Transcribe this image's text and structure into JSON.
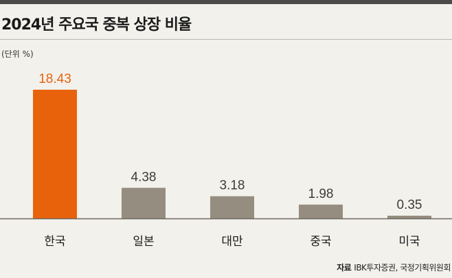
{
  "header": {
    "title": "2024년 주요국 중복 상장 비율",
    "unit": "(단위 %)"
  },
  "source": {
    "lead": "자료",
    "text": "IBK투자증권, 국정기획위원회"
  },
  "colors": {
    "highlight": "#e8620c",
    "bar": "#958e80",
    "axis": "#6f6a60"
  },
  "chart_data": {
    "type": "bar",
    "title": "2024년 주요국 중복 상장 비율",
    "ylabel": "(단위 %)",
    "xlabel": "",
    "categories": [
      "한국",
      "일본",
      "대만",
      "중국",
      "미국"
    ],
    "values": [
      18.43,
      4.38,
      3.18,
      1.98,
      0.35
    ],
    "value_labels": [
      "18.43",
      "4.38",
      "3.18",
      "1.98",
      "0.35"
    ],
    "highlight_index": 0,
    "ylim": [
      0,
      18.43
    ],
    "grid": false,
    "legend": "none"
  }
}
